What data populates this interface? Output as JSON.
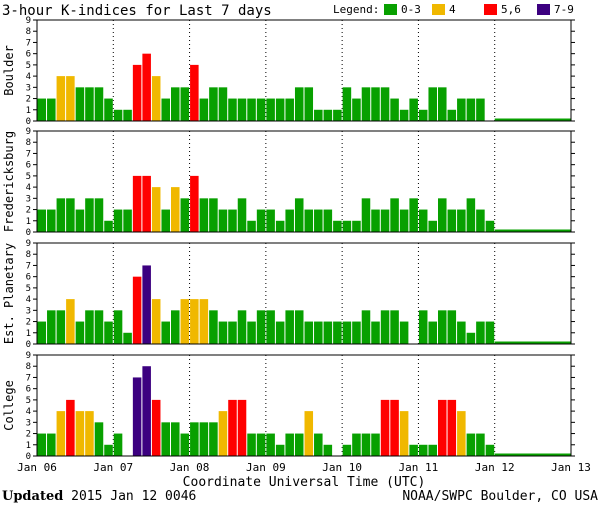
{
  "header": {
    "title": "3-hour K-indices for Last 7 days",
    "legend_label": "Legend:",
    "legend": [
      {
        "label": "0-3",
        "color": "#08a000"
      },
      {
        "label": "4",
        "color": "#f0b800"
      },
      {
        "label": "5,6",
        "color": "#ff0000"
      },
      {
        "label": "7-9",
        "color": "#3c0080"
      }
    ]
  },
  "footer": {
    "updated_label": "Updated",
    "updated_value": "2015 Jan 12 0046",
    "credit": "NOAA/SWPC Boulder, CO USA"
  },
  "chart_data": {
    "type": "bar",
    "xlabel": "Coordinate Universal Time (UTC)",
    "x_ticks": [
      "Jan 06",
      "Jan 07",
      "Jan 08",
      "Jan 09",
      "Jan 10",
      "Jan 11",
      "Jan 12",
      "Jan 13"
    ],
    "ylim": [
      0,
      9
    ],
    "y_ticks": [
      0,
      1,
      2,
      3,
      4,
      5,
      6,
      7,
      8,
      9
    ],
    "bins_per_day": 8,
    "days": 7,
    "series": [
      {
        "name": "Boulder",
        "values": [
          2,
          2,
          4,
          4,
          3,
          3,
          3,
          2,
          1,
          1,
          5,
          6,
          4,
          2,
          3,
          3,
          5,
          2,
          3,
          3,
          2,
          2,
          2,
          2,
          2,
          2,
          2,
          3,
          3,
          1,
          1,
          1,
          3,
          2,
          3,
          3,
          3,
          2,
          1,
          2,
          1,
          3,
          3,
          1,
          2,
          2,
          2,
          0
        ]
      },
      {
        "name": "Fredericksburg",
        "values": [
          2,
          2,
          3,
          3,
          2,
          3,
          3,
          1,
          2,
          2,
          5,
          5,
          4,
          2,
          4,
          3,
          5,
          3,
          3,
          2,
          2,
          3,
          1,
          2,
          2,
          1,
          2,
          3,
          2,
          2,
          2,
          1,
          1,
          1,
          3,
          2,
          2,
          3,
          2,
          3,
          2,
          1,
          3,
          2,
          2,
          3,
          2,
          1
        ]
      },
      {
        "name": "Est. Planetary",
        "values": [
          2,
          3,
          3,
          4,
          2,
          3,
          3,
          2,
          3,
          1,
          6,
          7,
          4,
          2,
          3,
          4,
          4,
          4,
          3,
          2,
          2,
          3,
          2,
          3,
          3,
          2,
          3,
          3,
          2,
          2,
          2,
          2,
          2,
          2,
          3,
          2,
          3,
          3,
          2,
          0,
          3,
          2,
          3,
          3,
          2,
          1,
          2,
          2
        ]
      },
      {
        "name": "College",
        "values": [
          2,
          2,
          4,
          5,
          4,
          4,
          3,
          1,
          2,
          0,
          7,
          8,
          5,
          3,
          3,
          2,
          3,
          3,
          3,
          4,
          5,
          5,
          2,
          2,
          2,
          1,
          2,
          2,
          4,
          2,
          1,
          0,
          1,
          2,
          2,
          2,
          5,
          5,
          4,
          1,
          1,
          1,
          5,
          5,
          4,
          2,
          2,
          1
        ]
      }
    ]
  }
}
